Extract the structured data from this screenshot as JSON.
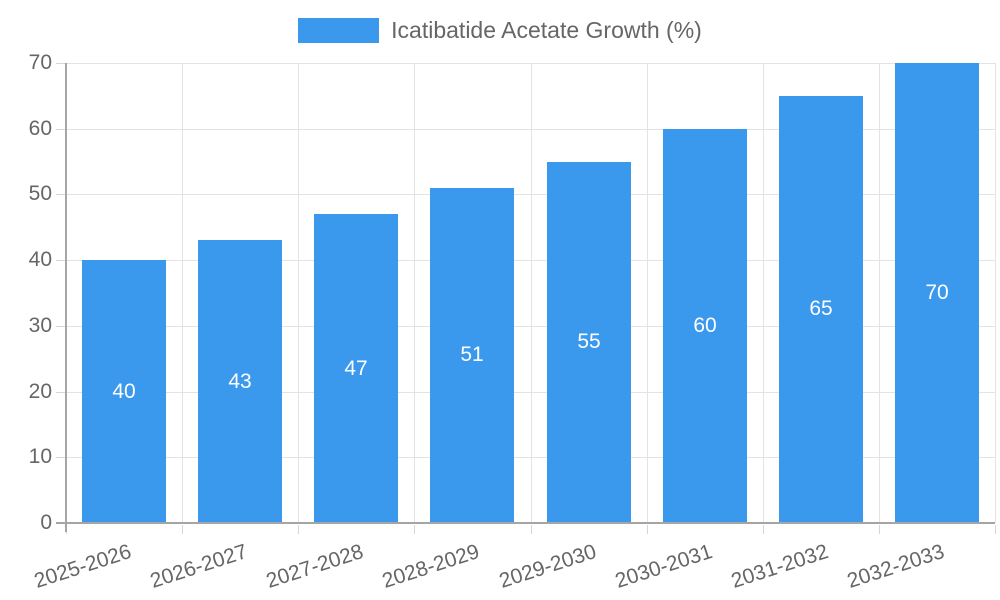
{
  "chart_data": {
    "type": "bar",
    "legend_label": "Icatibatide Acetate Growth (%)",
    "legend_position": "top",
    "categories": [
      "2025-2026",
      "2026-2027",
      "2027-2028",
      "2028-2029",
      "2029-2030",
      "2030-2031",
      "2031-2032",
      "2032-2033"
    ],
    "values": [
      40,
      43,
      47,
      51,
      55,
      60,
      65,
      70
    ],
    "value_labels": [
      "40",
      "43",
      "47",
      "51",
      "55",
      "60",
      "65",
      "70"
    ],
    "title": "",
    "xlabel": "",
    "ylabel": "",
    "ylim": [
      0,
      70
    ],
    "yticks": [
      0,
      10,
      20,
      30,
      40,
      50,
      60,
      70
    ],
    "grid": "on",
    "colors": {
      "bar": "#3a98ed",
      "value_label": "#ffffff",
      "tick_label": "#666666",
      "legend_text": "#666666",
      "gridline": "#e3e3e3",
      "tick_mark": "#d6d6d6",
      "axis_line": "#a5a5a5",
      "background": "#ffffff"
    }
  }
}
